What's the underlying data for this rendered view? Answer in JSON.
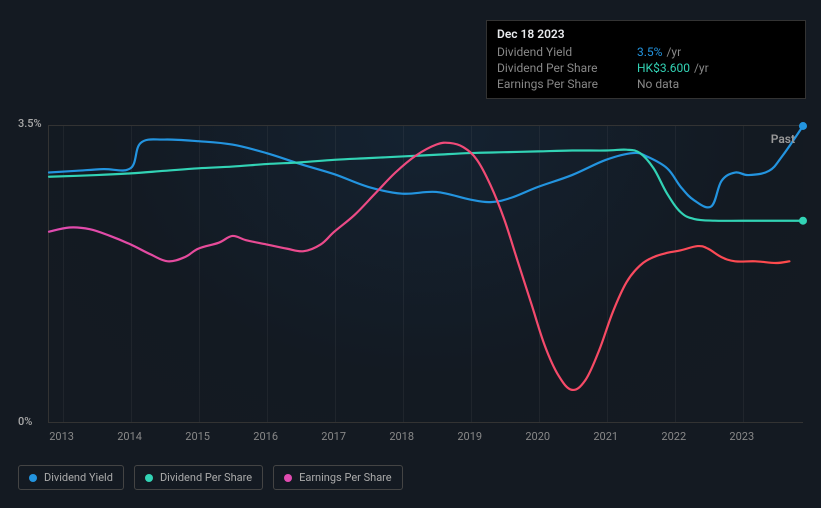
{
  "tooltip": {
    "title": "Dec 18 2023",
    "rows": [
      {
        "label": "Dividend Yield",
        "value": "3.5%",
        "unit": "/yr",
        "color": "#2394df"
      },
      {
        "label": "Dividend Per Share",
        "value": "HK$3.600",
        "unit": "/yr",
        "color": "#32d3b5"
      },
      {
        "label": "Earnings Per Share",
        "value": "No data",
        "unit": "",
        "color": "#888888"
      }
    ]
  },
  "chart": {
    "type": "line",
    "background_color": "#141a22",
    "grid_color": "rgba(120,120,120,0.12)",
    "border_color": "#333333",
    "y_axis": {
      "min": 0,
      "max": 3.5,
      "labels": [
        {
          "v": 3.5,
          "text": "3.5%"
        },
        {
          "v": 0,
          "text": "0%"
        }
      ],
      "label_color": "#aaaaaa",
      "label_fontsize": 11
    },
    "x_axis": {
      "min": 2012.8,
      "max": 2023.9,
      "ticks": [
        2013,
        2014,
        2015,
        2016,
        2017,
        2018,
        2019,
        2020,
        2021,
        2022,
        2023
      ],
      "label_color": "#888888",
      "label_fontsize": 11
    },
    "past_label": "Past",
    "series": [
      {
        "name": "Dividend Yield",
        "color": "#2394df",
        "line_width": 2.2,
        "end_dot": true,
        "points": [
          [
            2012.8,
            2.95
          ],
          [
            2013.2,
            2.97
          ],
          [
            2013.6,
            2.99
          ],
          [
            2014.0,
            3.0
          ],
          [
            2014.15,
            3.3
          ],
          [
            2014.5,
            3.34
          ],
          [
            2015.0,
            3.32
          ],
          [
            2015.5,
            3.28
          ],
          [
            2016.0,
            3.18
          ],
          [
            2016.5,
            3.05
          ],
          [
            2017.0,
            2.93
          ],
          [
            2017.5,
            2.78
          ],
          [
            2018.0,
            2.7
          ],
          [
            2018.5,
            2.72
          ],
          [
            2019.0,
            2.63
          ],
          [
            2019.3,
            2.6
          ],
          [
            2019.6,
            2.65
          ],
          [
            2020.0,
            2.78
          ],
          [
            2020.5,
            2.92
          ],
          [
            2021.0,
            3.1
          ],
          [
            2021.4,
            3.18
          ],
          [
            2021.6,
            3.14
          ],
          [
            2021.9,
            3.0
          ],
          [
            2022.1,
            2.78
          ],
          [
            2022.3,
            2.62
          ],
          [
            2022.55,
            2.55
          ],
          [
            2022.7,
            2.85
          ],
          [
            2022.9,
            2.95
          ],
          [
            2023.1,
            2.92
          ],
          [
            2023.4,
            2.97
          ],
          [
            2023.6,
            3.15
          ],
          [
            2023.9,
            3.5
          ]
        ]
      },
      {
        "name": "Dividend Per Share",
        "color": "#32d3b5",
        "line_width": 2.2,
        "end_dot": true,
        "points": [
          [
            2012.8,
            2.9
          ],
          [
            2013.5,
            2.92
          ],
          [
            2014.0,
            2.94
          ],
          [
            2014.5,
            2.97
          ],
          [
            2015.0,
            3.0
          ],
          [
            2015.5,
            3.02
          ],
          [
            2016.0,
            3.05
          ],
          [
            2016.5,
            3.07
          ],
          [
            2017.0,
            3.1
          ],
          [
            2017.5,
            3.12
          ],
          [
            2018.0,
            3.14
          ],
          [
            2018.5,
            3.16
          ],
          [
            2019.0,
            3.18
          ],
          [
            2019.5,
            3.19
          ],
          [
            2020.0,
            3.2
          ],
          [
            2020.5,
            3.21
          ],
          [
            2021.0,
            3.21
          ],
          [
            2021.3,
            3.22
          ],
          [
            2021.5,
            3.18
          ],
          [
            2021.7,
            3.0
          ],
          [
            2021.9,
            2.7
          ],
          [
            2022.1,
            2.48
          ],
          [
            2022.3,
            2.4
          ],
          [
            2022.6,
            2.38
          ],
          [
            2023.0,
            2.38
          ],
          [
            2023.5,
            2.38
          ],
          [
            2023.9,
            2.38
          ]
        ]
      },
      {
        "name": "Earnings Per Share",
        "color_gradient": {
          "from": "#e04bb0",
          "to": "#ff4a4a"
        },
        "line_width": 2.2,
        "end_dot": false,
        "points": [
          [
            2012.8,
            2.25
          ],
          [
            2013.1,
            2.3
          ],
          [
            2013.4,
            2.28
          ],
          [
            2013.7,
            2.2
          ],
          [
            2014.0,
            2.1
          ],
          [
            2014.3,
            1.98
          ],
          [
            2014.55,
            1.9
          ],
          [
            2014.8,
            1.95
          ],
          [
            2015.0,
            2.05
          ],
          [
            2015.3,
            2.12
          ],
          [
            2015.5,
            2.2
          ],
          [
            2015.7,
            2.15
          ],
          [
            2016.0,
            2.1
          ],
          [
            2016.3,
            2.05
          ],
          [
            2016.55,
            2.02
          ],
          [
            2016.8,
            2.1
          ],
          [
            2017.0,
            2.25
          ],
          [
            2017.3,
            2.45
          ],
          [
            2017.6,
            2.7
          ],
          [
            2017.9,
            2.95
          ],
          [
            2018.2,
            3.15
          ],
          [
            2018.5,
            3.28
          ],
          [
            2018.7,
            3.3
          ],
          [
            2018.9,
            3.25
          ],
          [
            2019.1,
            3.1
          ],
          [
            2019.3,
            2.8
          ],
          [
            2019.5,
            2.4
          ],
          [
            2019.7,
            1.9
          ],
          [
            2019.9,
            1.4
          ],
          [
            2020.1,
            0.9
          ],
          [
            2020.3,
            0.55
          ],
          [
            2020.5,
            0.38
          ],
          [
            2020.7,
            0.5
          ],
          [
            2020.9,
            0.85
          ],
          [
            2021.1,
            1.3
          ],
          [
            2021.3,
            1.65
          ],
          [
            2021.5,
            1.85
          ],
          [
            2021.7,
            1.95
          ],
          [
            2021.9,
            2.0
          ],
          [
            2022.1,
            2.03
          ],
          [
            2022.35,
            2.08
          ],
          [
            2022.5,
            2.05
          ],
          [
            2022.7,
            1.95
          ],
          [
            2022.9,
            1.9
          ],
          [
            2023.2,
            1.9
          ],
          [
            2023.5,
            1.88
          ],
          [
            2023.7,
            1.9
          ]
        ]
      }
    ],
    "legend": {
      "border_color": "#444444",
      "text_color": "#aaaaaa",
      "fontsize": 11,
      "items": [
        {
          "label": "Dividend Yield",
          "color": "#2394df"
        },
        {
          "label": "Dividend Per Share",
          "color": "#32d3b5"
        },
        {
          "label": "Earnings Per Share",
          "color": "#e04bb0"
        }
      ]
    }
  }
}
